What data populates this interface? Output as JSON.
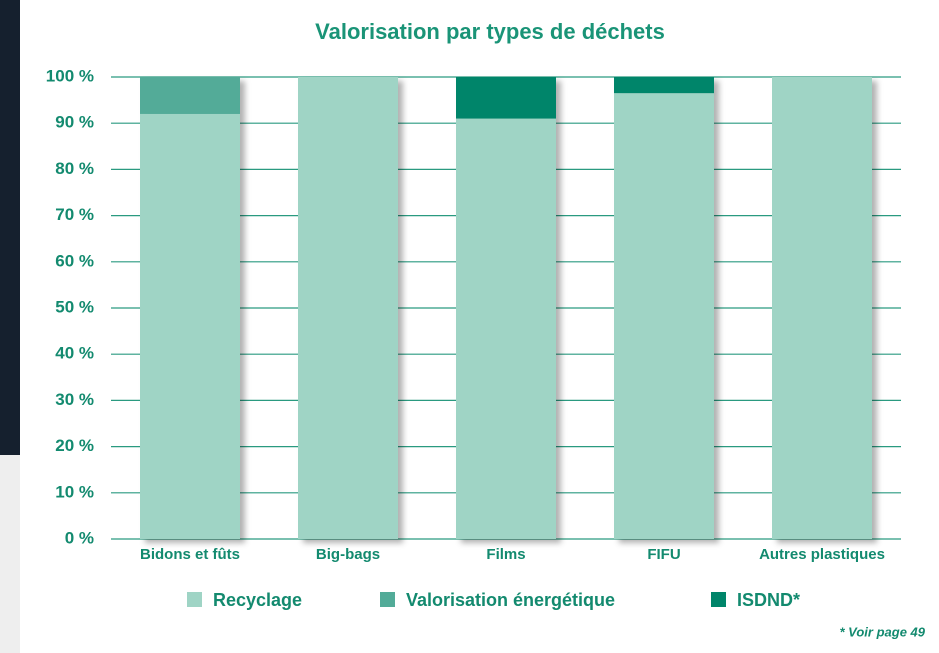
{
  "chart_data": {
    "type": "stacked-bar",
    "title": "Valorisation par types de déchets",
    "categories": [
      "Bidons et fûts",
      "Big-bags",
      "Films",
      "FIFU",
      "Autres plastiques"
    ],
    "series": [
      {
        "name": "Recyclage",
        "color": "#9fd4c5",
        "values": [
          92,
          100,
          91,
          96.5,
          100
        ]
      },
      {
        "name": "Valorisation énergétique",
        "color": "#52ab98",
        "values": [
          8,
          0,
          0,
          0,
          0
        ]
      },
      {
        "name": "ISDND*",
        "color": "#00856a",
        "values": [
          0,
          0,
          9,
          3.5,
          0
        ]
      }
    ],
    "ylim": [
      0,
      100
    ],
    "yticks": [
      {
        "value": 0,
        "label": "0 %"
      },
      {
        "value": 10,
        "label": "10 %"
      },
      {
        "value": 20,
        "label": "20 %"
      },
      {
        "value": 30,
        "label": "30 %"
      },
      {
        "value": 40,
        "label": "40 %"
      },
      {
        "value": 50,
        "label": "50 %"
      },
      {
        "value": 60,
        "label": "60 %"
      },
      {
        "value": 70,
        "label": "70 %"
      },
      {
        "value": 80,
        "label": "80 %"
      },
      {
        "value": 90,
        "label": "90 %"
      },
      {
        "value": 100,
        "label": "100 %"
      }
    ],
    "grid": true,
    "footnote": "* Voir page 49"
  }
}
